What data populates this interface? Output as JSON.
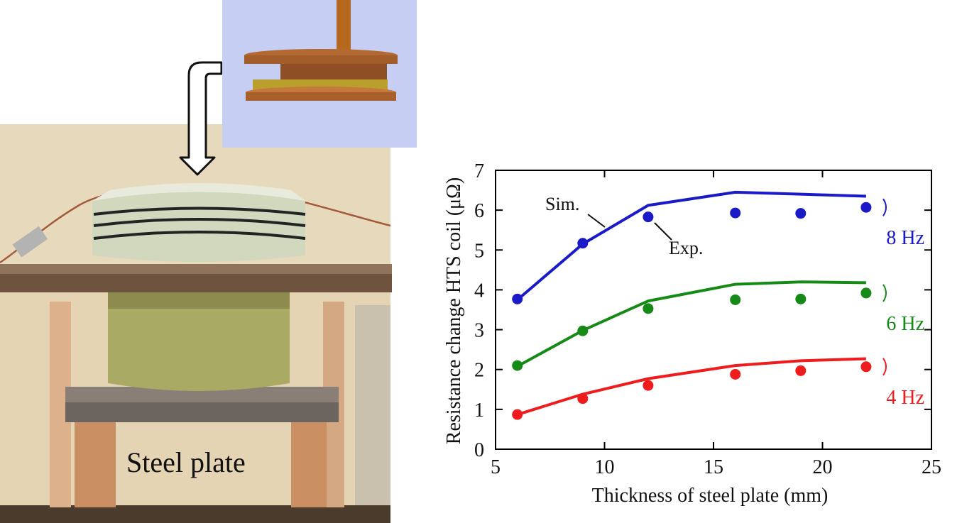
{
  "photo": {
    "label": "Steel plate",
    "colors": {
      "wall": "#e6d7b8",
      "board": "#7a5f48",
      "coil_housing": "#cfd6b8",
      "pot": "#a8a862",
      "wood_leg": "#d8aa84",
      "inset_bg": "#b9c2f0",
      "disk": "#c97a3a"
    }
  },
  "chart_data": {
    "type": "scatter",
    "xlabel": "Thickness of  steel plate (mm)",
    "ylabel": "Resistance change HTS coil (μΩ)",
    "xlim": [
      5,
      25
    ],
    "ylim": [
      0,
      7
    ],
    "xticks": [
      "5",
      "10",
      "15",
      "20",
      "25"
    ],
    "yticks": [
      "0",
      "1",
      "2",
      "3",
      "4",
      "5",
      "6",
      "7"
    ],
    "grid": false,
    "annotations": {
      "sim": "Sim.",
      "exp": "Exp."
    },
    "series": [
      {
        "name": "8 Hz",
        "color": "#1a1ac8",
        "exp_x": [
          6,
          9,
          12,
          16,
          19,
          22
        ],
        "exp_y": [
          3.77,
          5.17,
          5.83,
          5.93,
          5.92,
          6.07
        ],
        "sim_x": [
          6,
          9,
          12,
          16,
          19,
          22
        ],
        "sim_y": [
          3.75,
          5.15,
          6.12,
          6.45,
          6.4,
          6.35
        ]
      },
      {
        "name": "6 Hz",
        "color": "#168a16",
        "exp_x": [
          6,
          9,
          12,
          16,
          19,
          22
        ],
        "exp_y": [
          2.1,
          2.97,
          3.53,
          3.75,
          3.77,
          3.92
        ],
        "sim_x": [
          6,
          9,
          12,
          16,
          19,
          22
        ],
        "sim_y": [
          2.08,
          2.98,
          3.72,
          4.14,
          4.2,
          4.18
        ]
      },
      {
        "name": "4 Hz",
        "color": "#ee1c1c",
        "exp_x": [
          6,
          9,
          12,
          16,
          19,
          22
        ],
        "exp_y": [
          0.87,
          1.27,
          1.6,
          1.88,
          1.97,
          2.07
        ],
        "sim_x": [
          6,
          9,
          12,
          16,
          19,
          22
        ],
        "sim_y": [
          0.87,
          1.38,
          1.77,
          2.1,
          2.22,
          2.27
        ]
      }
    ]
  }
}
